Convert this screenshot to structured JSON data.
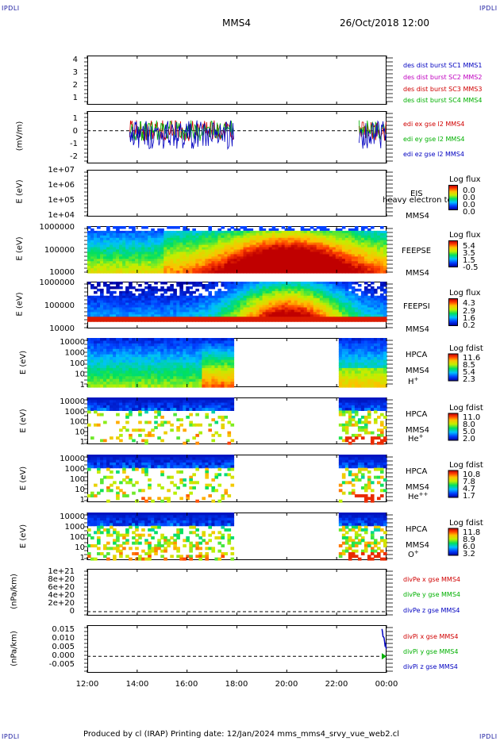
{
  "corners": {
    "tl": "IPDLI",
    "tr": "IPDLI",
    "bl": "IPDLI",
    "br": "IPDLI"
  },
  "header": {
    "spacecraft": "MMS4",
    "datetime": "26/Oct/2018 12:00"
  },
  "footer": {
    "text": "Produced by cl (IRAP)   Printing date: 12/Jan/2024   mms_mms4_srvy_vue_web2.cl"
  },
  "colors": {
    "red": "#d00000",
    "green": "#00b000",
    "blue": "#0000c0",
    "magenta": "#c000c0"
  },
  "chart_data": [
    {
      "type": "line",
      "title": "",
      "ylim": [
        0.5,
        4.5
      ],
      "y_ticks": [
        "4",
        "3",
        "2",
        "1"
      ],
      "legend": [
        "des dist burst SC1 MMS1",
        "des dist burst SC2 MMS2",
        "des dist burst SC3 MMS3",
        "des dist burst SC4 MMS4"
      ]
    },
    {
      "type": "line",
      "ylabel": "(mV/m)",
      "ylim": [
        -2.5,
        1.5
      ],
      "y_ticks": [
        "1",
        "0",
        "-1",
        "-2"
      ],
      "legend": [
        "edi ex gse l2 MMS4",
        "edi ey gse l2 MMS4",
        "edi ez gse l2 MMS4"
      ],
      "data_time_ranges": [
        [
          13.7,
          17.9
        ],
        [
          22.9,
          24.0
        ]
      ]
    },
    {
      "type": "heatmap",
      "ylabel": "E (eV)",
      "y_ticks": [
        "1e+07",
        "1e+06",
        "1e+05",
        "1e+04"
      ],
      "instrument": [
        "EIS",
        "MMS4"
      ],
      "overlay_text": "heavy electron to",
      "colorbar": {
        "title": "Log flux",
        "values": [
          "0.0",
          "0.0",
          "0.0",
          "0.0"
        ]
      }
    },
    {
      "type": "heatmap",
      "ylabel": "E (eV)",
      "y_ticks": [
        "1000000",
        "100000",
        "10000"
      ],
      "instrument": [
        "FEEPSE",
        "MMS4"
      ],
      "colorbar": {
        "title": "Log flux",
        "values": [
          "5.4",
          "3.5",
          "1.5",
          "-0.5"
        ]
      }
    },
    {
      "type": "heatmap",
      "ylabel": "E (eV)",
      "y_ticks": [
        "1000000",
        "100000",
        "10000"
      ],
      "instrument": [
        "FEEPSI",
        "MMS4"
      ],
      "colorbar": {
        "title": "Log flux",
        "values": [
          "4.3",
          "2.9",
          "1.6",
          "0.2"
        ]
      }
    },
    {
      "type": "heatmap",
      "ylabel": "E (eV)",
      "y_ticks": [
        "10000",
        "1000",
        "100",
        "10",
        "1"
      ],
      "instrument": [
        "HPCA",
        "MMS4"
      ],
      "species": "H",
      "species_charge": "+",
      "colorbar": {
        "title": "Log fdist",
        "values": [
          "11.6",
          "8.5",
          "5.4",
          "2.3"
        ]
      }
    },
    {
      "type": "heatmap",
      "ylabel": "E (eV)",
      "y_ticks": [
        "10000",
        "1000",
        "100",
        "10",
        "1"
      ],
      "instrument": [
        "HPCA",
        "MMS4"
      ],
      "species": "He",
      "species_charge": "+",
      "colorbar": {
        "title": "Log fdist",
        "values": [
          "11.0",
          "8.0",
          "5.0",
          "2.0"
        ]
      }
    },
    {
      "type": "heatmap",
      "ylabel": "E (eV)",
      "y_ticks": [
        "10000",
        "1000",
        "100",
        "10",
        "1"
      ],
      "instrument": [
        "HPCA",
        "MMS4"
      ],
      "species": "He",
      "species_charge": "++",
      "colorbar": {
        "title": "Log fdist",
        "values": [
          "10.8",
          "7.8",
          "4.7",
          "1.7"
        ]
      }
    },
    {
      "type": "heatmap",
      "ylabel": "E (eV)",
      "y_ticks": [
        "10000",
        "1000",
        "100",
        "10",
        "1"
      ],
      "instrument": [
        "HPCA",
        "MMS4"
      ],
      "species": "O",
      "species_charge": "+",
      "colorbar": {
        "title": "Log fdist",
        "values": [
          "11.8",
          "8.9",
          "6.0",
          "3.2"
        ]
      }
    },
    {
      "type": "line",
      "ylabel": "(nPa/km)",
      "y_ticks": [
        "1e+21",
        "8e+20",
        "6e+20",
        "4e+20",
        "2e+20",
        "0"
      ],
      "ylim": [
        -1e+20,
        1.1e+21
      ],
      "legend": [
        "divPe x gse MMS4",
        "divPe y gse MMS4",
        "divPe z gse MMS4"
      ]
    },
    {
      "type": "line",
      "ylabel": "(nPa/km)",
      "y_ticks": [
        "0.015",
        "0.010",
        "0.005",
        "0.000",
        "-0.005"
      ],
      "ylim": [
        -0.009,
        0.017
      ],
      "legend": [
        "divPi x gse MMS4",
        "divPi y gse MMS4",
        "divPi z gse MMS4"
      ],
      "data_time_ranges": [
        [
          23.8,
          24.0
        ]
      ]
    }
  ],
  "x_axis": {
    "ticks": [
      "12:00",
      "14:00",
      "16:00",
      "18:00",
      "20:00",
      "22:00",
      "00:00"
    ],
    "range_hours": [
      12,
      24
    ]
  }
}
